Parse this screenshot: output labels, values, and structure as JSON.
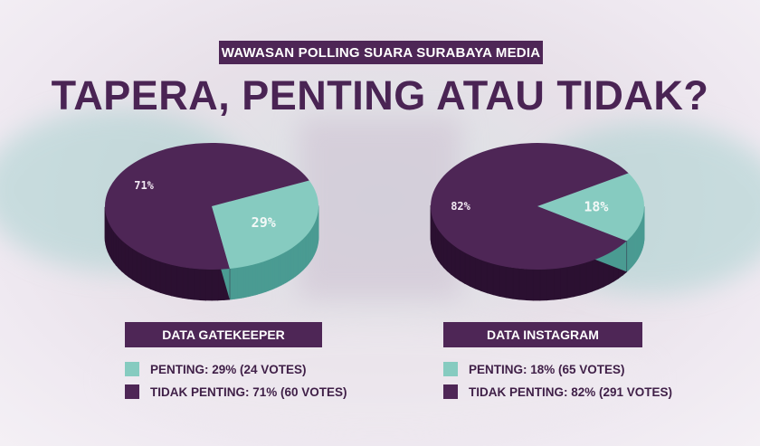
{
  "banner": "WAWASAN POLLING SUARA SURABAYA MEDIA",
  "headline": "TAPERA, PENTING ATAU TIDAK?",
  "colors": {
    "penting_top": "#86cbc0",
    "penting_side": "#4a9b92",
    "tidak_top": "#4e2656",
    "tidak_side": "#2b1031",
    "banner_bg": "#4e2656"
  },
  "chart_data": [
    {
      "type": "pie",
      "title": "DATA GATEKEEPER",
      "slices": [
        {
          "label": "PENTING",
          "value": 29,
          "votes": 24,
          "display": "29%",
          "legend": "PENTING: 29% (24 VOTES)"
        },
        {
          "label": "TIDAK PENTING",
          "value": 71,
          "votes": 60,
          "display": "71%",
          "legend": "TIDAK PENTING: 71% (60 VOTES)"
        }
      ]
    },
    {
      "type": "pie",
      "title": "DATA INSTAGRAM",
      "slices": [
        {
          "label": "PENTING",
          "value": 18,
          "votes": 65,
          "display": "18%",
          "legend": "PENTING: 18% (65 VOTES)"
        },
        {
          "label": "TIDAK PENTING",
          "value": 82,
          "votes": 291,
          "display": "82%",
          "legend": "TIDAK PENTING: 82% (291 VOTES)"
        }
      ]
    }
  ]
}
